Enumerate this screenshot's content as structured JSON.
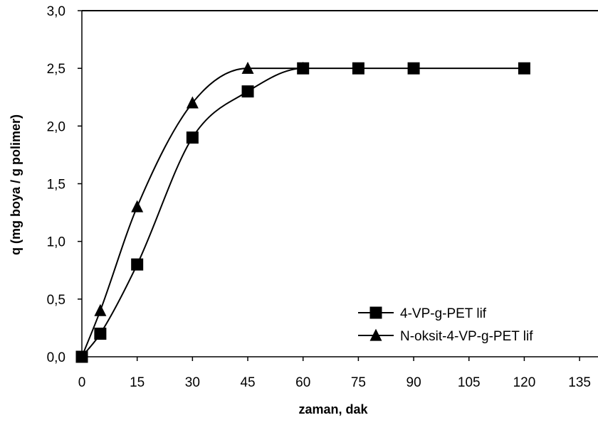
{
  "chart_data": {
    "type": "line",
    "title": "",
    "xlabel": "zaman, dak",
    "ylabel": "q (mg boya / g polimer)",
    "xlim": [
      0,
      140
    ],
    "ylim": [
      0,
      3.0
    ],
    "x_ticks": [
      0,
      15,
      30,
      45,
      60,
      75,
      90,
      105,
      120,
      135
    ],
    "x_tick_labels": [
      "0",
      "15",
      "30",
      "45",
      "60",
      "75",
      "90",
      "105",
      "120",
      "135"
    ],
    "y_ticks": [
      0,
      0.5,
      1.0,
      1.5,
      2.0,
      2.5,
      3.0
    ],
    "y_tick_labels": [
      "0,0",
      "0,5",
      "1,0",
      "1,5",
      "2,0",
      "2,5",
      "3,0"
    ],
    "grid": false,
    "legend_position": "bottom-right",
    "line_style": "smooth",
    "colors": {
      "series": "#000000",
      "axis": "#000000",
      "background": "#ffffff"
    },
    "series": [
      {
        "name": "4-VP-g-PET lif",
        "marker": "square",
        "x": [
          0,
          5,
          15,
          30,
          45,
          60,
          75,
          90,
          120
        ],
        "y": [
          0,
          0.2,
          0.8,
          1.9,
          2.3,
          2.5,
          2.5,
          2.5,
          2.5
        ]
      },
      {
        "name": "N-oksit-4-VP-g-PET lif",
        "marker": "triangle",
        "x": [
          0,
          5,
          15,
          30,
          45,
          60
        ],
        "y": [
          0,
          0.4,
          1.3,
          2.2,
          2.5,
          2.5
        ]
      }
    ]
  }
}
